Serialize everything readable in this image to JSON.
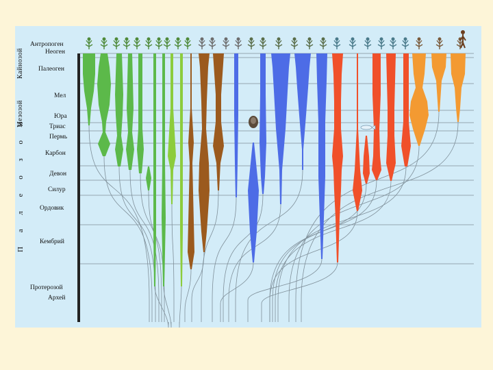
{
  "eras": [
    {
      "id": "cenozoic",
      "label": "Кайнозой"
    },
    {
      "id": "mesozoic",
      "label": "Мезозой"
    },
    {
      "id": "paleozoic",
      "label": "П а л е о з о й"
    }
  ],
  "periods": [
    {
      "id": "anthropogene",
      "label": "Антропоген"
    },
    {
      "id": "neogene",
      "label": "Неоген"
    },
    {
      "id": "paleogene",
      "label": "Палеоген"
    },
    {
      "id": "cretaceous",
      "label": "Мел"
    },
    {
      "id": "jurassic",
      "label": "Юра"
    },
    {
      "id": "triassic",
      "label": "Триас"
    },
    {
      "id": "permian",
      "label": "Пермь"
    },
    {
      "id": "carboniferous",
      "label": "Карбон"
    },
    {
      "id": "devonian",
      "label": "Девон"
    },
    {
      "id": "silurian",
      "label": "Силур"
    },
    {
      "id": "ordovician",
      "label": "Ордовик"
    },
    {
      "id": "cambrian",
      "label": "Кембрий"
    },
    {
      "id": "proterozoic",
      "label": "Протерозой"
    },
    {
      "id": "archean",
      "label": "Архей"
    }
  ],
  "groups": [
    {
      "name": "plants",
      "color": "#5cb94a"
    },
    {
      "name": "plants-light",
      "color": "#8ccc3c"
    },
    {
      "name": "fungi",
      "color": "#9b5a1e"
    },
    {
      "name": "invertebrates",
      "color": "#4d6ce6"
    },
    {
      "name": "vertebrates",
      "color": "#f0502a"
    },
    {
      "name": "reptiles-birds-mammals",
      "color": "#f39a32"
    }
  ]
}
